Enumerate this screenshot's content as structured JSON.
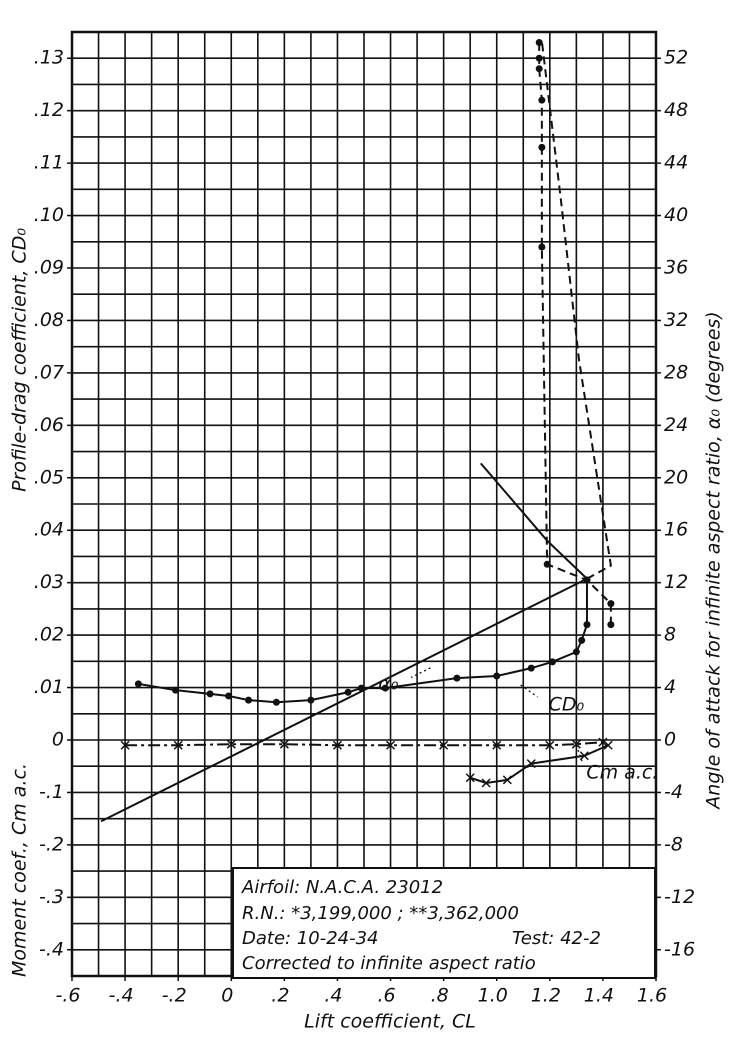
{
  "chart_data": {
    "type": "line",
    "x_label": "Lift coefficient, CL",
    "y_label": "Profile-drag coefficient, CD₀",
    "y3_label": "Moment coef., Cm a.c.",
    "y2_label": "Angle of attack for infinite aspect ratio, α₀ (degrees)",
    "xlim": [
      -0.6,
      1.6
    ],
    "ylim": [
      -0.045,
      0.135
    ],
    "y2lim": [
      -18,
      54
    ],
    "y3lim": [
      -0.45,
      1.35
    ],
    "xticks": [
      {
        "value": -0.6,
        "label": "-.6"
      },
      {
        "value": -0.4,
        "label": "-.4"
      },
      {
        "value": -0.2,
        "label": "-.2"
      },
      0,
      {
        "value": 0.2,
        "label": ".2"
      },
      {
        "value": 0.4,
        "label": ".4"
      },
      {
        "value": 0.6,
        "label": ".6"
      },
      {
        "value": 0.8,
        "label": ".8"
      },
      {
        "value": 1,
        "label": "1.0"
      },
      1.2,
      1.4,
      1.6
    ],
    "yticks": [
      0,
      {
        "value": 0.01,
        "label": ".01"
      },
      {
        "value": 0.02,
        "label": ".02"
      },
      {
        "value": 0.03,
        "label": ".03"
      },
      {
        "value": 0.04,
        "label": ".04"
      },
      {
        "value": 0.05,
        "label": ".05"
      },
      {
        "value": 0.06,
        "label": ".06"
      },
      {
        "value": 0.07,
        "label": ".07"
      },
      {
        "value": 0.08,
        "label": ".08"
      },
      {
        "value": 0.09,
        "label": ".09"
      },
      {
        "value": 0.1,
        "label": ".10"
      },
      {
        "value": 0.11,
        "label": ".11"
      },
      {
        "value": 0.12,
        "label": ".12"
      },
      {
        "value": 0.13,
        "label": ".13"
      }
    ],
    "y3ticks": [
      {
        "value": -0.1,
        "label": "-.1"
      },
      {
        "value": -0.2,
        "label": "-.2"
      },
      {
        "value": -0.3,
        "label": "-.3"
      },
      {
        "value": -0.4,
        "label": "-.4"
      }
    ],
    "y2ticks": [
      -16,
      -12,
      -8,
      -4,
      0,
      4,
      8,
      12,
      16,
      20,
      24,
      28,
      32,
      36,
      40,
      44,
      48,
      52
    ],
    "xgrid": [
      -0.6,
      -0.5,
      -0.4,
      -0.3,
      -0.2,
      -0.1,
      0,
      0.1,
      0.2,
      0.3,
      0.4,
      0.5,
      0.6,
      0.7,
      0.8,
      0.9,
      1,
      1.1,
      1.2,
      1.3,
      1.4,
      1.5,
      1.6
    ],
    "ygrid": [
      -0.045,
      -0.04,
      -0.035,
      -0.03,
      -0.025,
      -0.02,
      -0.015,
      -0.01,
      -0.005,
      0,
      0.005,
      0.01,
      0.015,
      0.02,
      0.025,
      0.03,
      0.035,
      0.04,
      0.045,
      0.05,
      0.055,
      0.06,
      0.065,
      0.07,
      0.075,
      0.08,
      0.085,
      0.09,
      0.095,
      0.1,
      0.105,
      0.11,
      0.115,
      0.12,
      0.125,
      0.13,
      0.135
    ],
    "grid": true,
    "series": [
      {
        "label": "CD₀",
        "axis": "y",
        "style": "solid",
        "marker": "dot",
        "color": "#111111",
        "x": [
          -0.35,
          -0.21,
          -0.08,
          -0.01,
          0.065,
          0.17,
          0.3,
          0.44,
          0.49,
          0.58,
          0.85,
          1.0,
          1.13,
          1.21,
          1.3,
          1.32,
          1.34,
          1.34
        ],
        "values": [
          0.0107,
          0.0095,
          0.0088,
          0.0084,
          0.0076,
          0.0072,
          0.0076,
          0.0091,
          0.0099,
          0.0099,
          0.0118,
          0.0122,
          0.0137,
          0.0149,
          0.0168,
          0.019,
          0.022,
          0.0305
        ]
      },
      {
        "axis": "y",
        "style": "dashed",
        "marker": "dot",
        "color": "#111111",
        "x": [
          1.43,
          1.43,
          1.34,
          1.19,
          1.17,
          1.17,
          1.17,
          1.16,
          1.16,
          1.16
        ],
        "values": [
          0.022,
          0.026,
          0.0305,
          0.0335,
          0.094,
          0.113,
          0.122,
          0.128,
          0.13,
          0.133
        ]
      },
      {
        "label": "α₀",
        "axis": "y2",
        "style": "solid",
        "marker": "none",
        "color": "#111111",
        "x": [
          -0.49,
          1.34
        ],
        "values": [
          -6.2,
          12.3
        ]
      },
      {
        "axis": "y2",
        "style": "solid",
        "marker": "none",
        "color": "#111111",
        "x": [
          0.94,
          1.19,
          1.34
        ],
        "values": [
          21.1,
          15.2,
          12.3
        ]
      },
      {
        "axis": "y2",
        "style": "dashed",
        "marker": "none",
        "color": "#111111",
        "x": [
          1.34,
          1.43,
          1.31,
          1.24,
          1.17
        ],
        "values": [
          12.3,
          13.3,
          29,
          41.5,
          53.3
        ]
      },
      {
        "label": "Cm a.c.",
        "axis": "y3",
        "style": "dashdot",
        "marker": "cross",
        "color": "#111111",
        "x": [
          -0.4,
          -0.2,
          0,
          0.2,
          0.4,
          0.6,
          0.8,
          1.0,
          1.2,
          1.3,
          1.4
        ],
        "values": [
          -0.01,
          -0.01,
          -0.008,
          -0.008,
          -0.01,
          -0.01,
          -0.01,
          -0.01,
          -0.01,
          -0.008,
          -0.004
        ]
      },
      {
        "axis": "y3",
        "style": "solid",
        "marker": "cross",
        "color": "#111111",
        "x": [
          1.42,
          1.33,
          1.13,
          1.04,
          0.96,
          0.9
        ],
        "values": [
          -0.01,
          -0.03,
          -0.045,
          -0.076,
          -0.082,
          -0.072
        ]
      }
    ],
    "info": {
      "airfoil": "Airfoil: N.A.C.A. 23012",
      "rn": "R.N.: *3,199,000 ; **3,362,000",
      "date": "Date: 10-24-34",
      "test": "Test: 42-2",
      "note": "Corrected to infinite aspect ratio"
    }
  }
}
